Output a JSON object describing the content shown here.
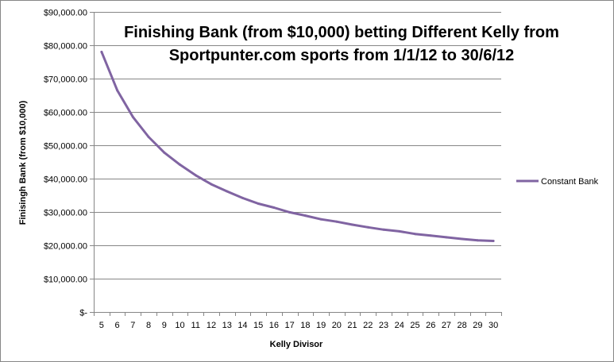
{
  "chart_data": {
    "type": "line",
    "title": "Finishing Bank (from $10,000) betting Different Kelly from",
    "subtitle": "Sportpunter.com sports from 1/1/12 to 30/6/12",
    "xlabel": "Kelly Divisor",
    "ylabel": "Finisingh Bank (from $10,000)",
    "ylim": [
      0,
      90000
    ],
    "y_tick_labels": [
      "$-",
      "$10,000.00",
      "$20,000.00",
      "$30,000.00",
      "$40,000.00",
      "$50,000.00",
      "$60,000.00",
      "$70,000.00",
      "$80,000.00",
      "$90,000.00"
    ],
    "grid": true,
    "legend_position": "right",
    "line_color": "#8064a2",
    "categories": [
      "5",
      "6",
      "7",
      "8",
      "9",
      "10",
      "11",
      "12",
      "13",
      "14",
      "15",
      "16",
      "17",
      "18",
      "19",
      "20",
      "21",
      "22",
      "23",
      "24",
      "25",
      "26",
      "27",
      "28",
      "29",
      "30"
    ],
    "series": [
      {
        "name": "Constant Bank",
        "values": [
          78000,
          66500,
          58500,
          52500,
          47800,
          44200,
          41000,
          38300,
          36200,
          34200,
          32500,
          31300,
          29900,
          28900,
          27800,
          27100,
          26200,
          25400,
          24700,
          24200,
          23400,
          22900,
          22400,
          21900,
          21500,
          21300
        ]
      }
    ]
  }
}
